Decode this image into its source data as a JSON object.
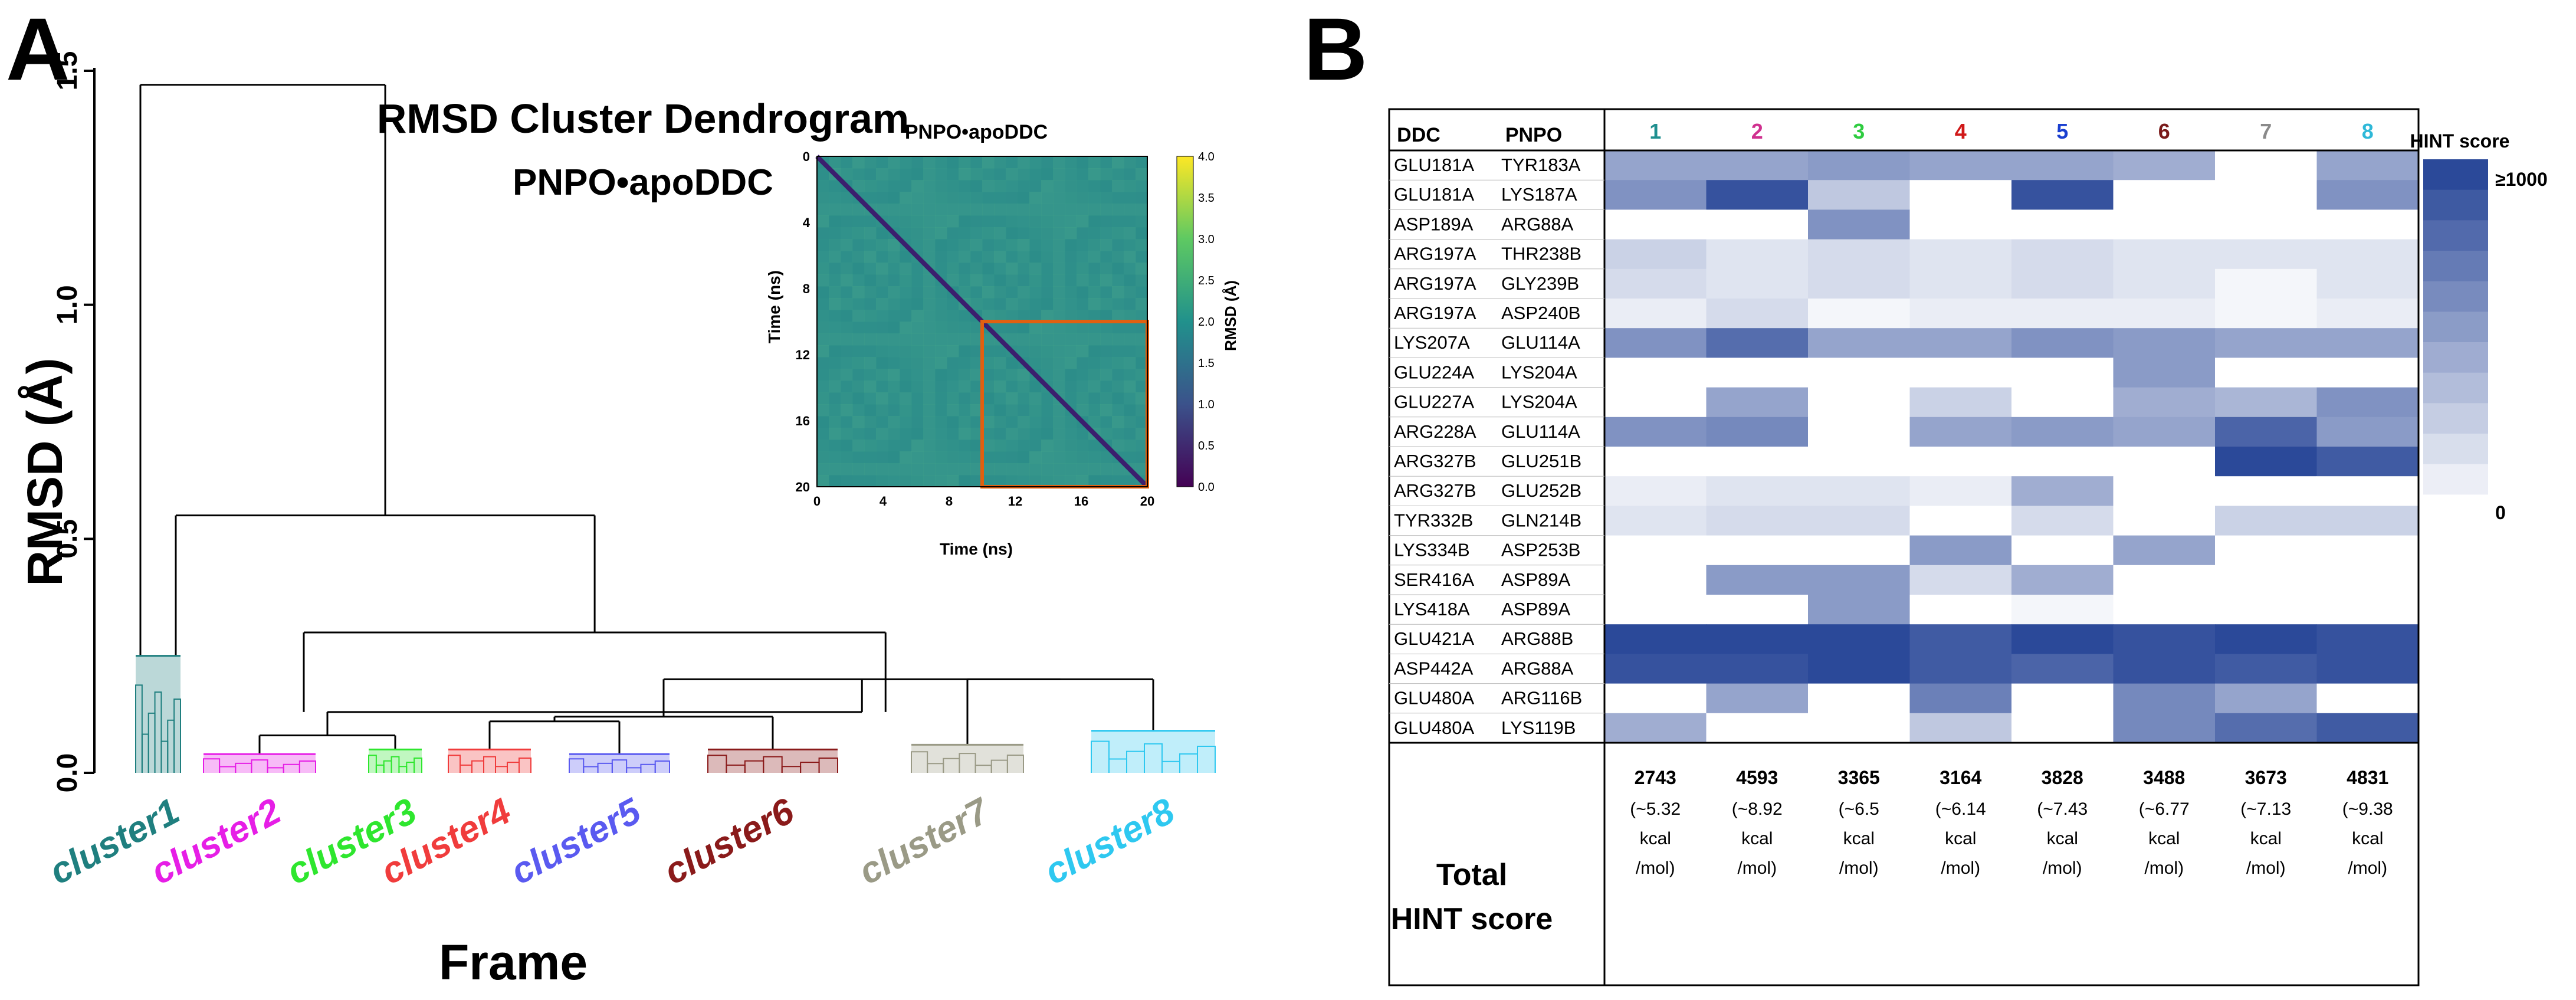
{
  "panel_a": {
    "letter": "A",
    "title": "RMSD Cluster Dendrogram",
    "subtitle": "PNPO•apoDDC",
    "ylabel": "RMSD (Å)",
    "xlabel": "Frame",
    "yticks": [
      "0.0",
      "0.5",
      "1.0",
      "1.5"
    ],
    "clusters": [
      {
        "label": "cluster1",
        "color": "#1f7f7f"
      },
      {
        "label": "cluster2",
        "color": "#e61ee6"
      },
      {
        "label": "cluster3",
        "color": "#2ee62e"
      },
      {
        "label": "cluster4",
        "color": "#f03c3c"
      },
      {
        "label": "cluster5",
        "color": "#5a5af0"
      },
      {
        "label": "cluster6",
        "color": "#8a1a1a"
      },
      {
        "label": "cluster7",
        "color": "#9a9a86"
      },
      {
        "label": "cluster8",
        "color": "#2ec8f0"
      }
    ],
    "inset": {
      "title": "PNPO•apoDDC",
      "xlabel": "Time (ns)",
      "ylabel": "Time (ns)",
      "ticks": [
        "0",
        "4",
        "8",
        "12",
        "16",
        "20"
      ],
      "colorbar_label": "RMSD (Å)",
      "colorbar_ticks": [
        "0.0",
        "0.5",
        "1.0",
        "1.5",
        "2.0",
        "2.5",
        "3.0",
        "3.5",
        "4.0"
      ]
    }
  },
  "panel_b": {
    "letter": "B",
    "header_ddc": "DDC",
    "header_pnpo": "PNPO",
    "legend_title": "HINT score",
    "legend_max": "≥1000",
    "legend_min": "0",
    "total_label_line1": "Total",
    "total_label_line2": "HINT score",
    "kcal_label": "kcal",
    "mol_label": "/mol)"
  },
  "chart_data": [
    {
      "type": "dendrogram",
      "title": "RMSD Cluster Dendrogram",
      "subtitle": "PNPO•apoDDC",
      "xlabel": "Frame",
      "ylabel": "RMSD (Å)",
      "ylim": [
        0,
        1.5
      ],
      "leaves": [
        "cluster1",
        "cluster2",
        "cluster3",
        "cluster4",
        "cluster5",
        "cluster6",
        "cluster7",
        "cluster8"
      ],
      "merges": [
        {
          "children": [
            "cluster2",
            "cluster3"
          ],
          "height": 0.08
        },
        {
          "children": [
            "cluster4",
            "cluster5"
          ],
          "height": 0.11
        },
        {
          "children": [
            "cluster4+5",
            "cluster6"
          ],
          "height": 0.12
        },
        {
          "children": [
            "cluster7",
            "cluster8"
          ],
          "height": 0.2
        },
        {
          "children": [
            "cluster4+5+6",
            "cluster7+8"
          ],
          "height": 0.2
        },
        {
          "children": [
            "cluster2+3",
            "cluster4-8"
          ],
          "height": 0.13
        },
        {
          "children": [
            "cluster2-3",
            "cluster4-8"
          ],
          "height": 0.3
        },
        {
          "children": [
            "cluster1",
            "cluster2-8"
          ],
          "height": 0.55
        },
        {
          "children": [
            "root-left",
            "root-right"
          ],
          "height": 1.47
        }
      ],
      "cluster_internal_height": [
        0.25,
        0.04,
        0.05,
        0.05,
        0.04,
        0.05,
        0.06,
        0.09
      ]
    },
    {
      "type": "heatmap",
      "title": "PNPO•apoDDC",
      "xlabel": "Time (ns)",
      "ylabel": "Time (ns)",
      "xlim": [
        0,
        20
      ],
      "ylim": [
        0,
        20
      ],
      "colorbar": {
        "label": "RMSD (Å)",
        "range": [
          0,
          4.0
        ]
      },
      "highlight_box_ns": {
        "x": [
          10,
          20
        ],
        "y": [
          10,
          20
        ]
      },
      "typical_offdiagonal_rmsd": 1.9,
      "diagonal_rmsd": 0.0
    },
    {
      "type": "table",
      "title": "HINT score",
      "columns": [
        "1",
        "2",
        "3",
        "4",
        "5",
        "6",
        "7",
        "8"
      ],
      "column_colors": [
        "#1f8f8f",
        "#d0308f",
        "#2ecc40",
        "#d01818",
        "#1a3fd0",
        "#7a1a1a",
        "#8a8a8a",
        "#2eb8d8"
      ],
      "scale_range": [
        0,
        1000
      ],
      "rows": [
        {
          "ddc": "GLU181A",
          "pnpo": "TYR183A",
          "values": [
            500,
            500,
            550,
            500,
            500,
            450,
            0,
            500
          ]
        },
        {
          "ddc": "GLU181A",
          "pnpo": "LYS187A",
          "values": [
            600,
            950,
            300,
            0,
            950,
            0,
            0,
            600
          ]
        },
        {
          "ddc": "ASP189A",
          "pnpo": "ARG88A",
          "values": [
            0,
            0,
            600,
            0,
            0,
            0,
            0,
            0
          ]
        },
        {
          "ddc": "ARG197A",
          "pnpo": "THR238B",
          "values": [
            250,
            150,
            200,
            150,
            200,
            150,
            150,
            150
          ]
        },
        {
          "ddc": "ARG197A",
          "pnpo": "GLY239B",
          "values": [
            200,
            150,
            200,
            150,
            200,
            150,
            50,
            150
          ]
        },
        {
          "ddc": "ARG197A",
          "pnpo": "ASP240B",
          "values": [
            100,
            200,
            50,
            100,
            100,
            100,
            50,
            100
          ]
        },
        {
          "ddc": "LYS207A",
          "pnpo": "GLU114A",
          "values": [
            600,
            800,
            500,
            500,
            600,
            550,
            500,
            500
          ]
        },
        {
          "ddc": "GLU224A",
          "pnpo": "LYS204A",
          "values": [
            0,
            0,
            0,
            0,
            0,
            550,
            0,
            0
          ]
        },
        {
          "ddc": "GLU227A",
          "pnpo": "LYS204A",
          "values": [
            0,
            500,
            0,
            250,
            0,
            450,
            400,
            600
          ]
        },
        {
          "ddc": "ARG228A",
          "pnpo": "GLU114A",
          "values": [
            600,
            650,
            0,
            500,
            550,
            500,
            850,
            550
          ]
        },
        {
          "ddc": "ARG327B",
          "pnpo": "GLU251B",
          "values": [
            0,
            0,
            0,
            0,
            0,
            0,
            1000,
            900
          ]
        },
        {
          "ddc": "ARG327B",
          "pnpo": "GLU252B",
          "values": [
            100,
            150,
            150,
            100,
            450,
            0,
            0,
            0
          ]
        },
        {
          "ddc": "TYR332B",
          "pnpo": "GLN214B",
          "values": [
            150,
            200,
            200,
            0,
            200,
            0,
            250,
            250
          ]
        },
        {
          "ddc": "LYS334B",
          "pnpo": "ASP253B",
          "values": [
            0,
            0,
            0,
            550,
            0,
            500,
            0,
            0
          ]
        },
        {
          "ddc": "SER416A",
          "pnpo": "ASP89A",
          "values": [
            0,
            550,
            550,
            200,
            450,
            0,
            0,
            0
          ]
        },
        {
          "ddc": "LYS418A",
          "pnpo": "ASP89A",
          "values": [
            0,
            0,
            550,
            0,
            50,
            0,
            0,
            0
          ]
        },
        {
          "ddc": "GLU421A",
          "pnpo": "ARG88B",
          "values": [
            1000,
            1000,
            1000,
            900,
            1000,
            950,
            1000,
            950
          ]
        },
        {
          "ddc": "ASP442A",
          "pnpo": "ARG88A",
          "values": [
            950,
            950,
            1000,
            900,
            850,
            950,
            900,
            950
          ]
        },
        {
          "ddc": "GLU480A",
          "pnpo": "ARG116B",
          "values": [
            0,
            500,
            0,
            700,
            0,
            650,
            500,
            0
          ]
        },
        {
          "ddc": "GLU480A",
          "pnpo": "LYS119B",
          "values": [
            450,
            0,
            0,
            300,
            0,
            650,
            800,
            900
          ]
        }
      ],
      "totals": [
        "2743",
        "4593",
        "3365",
        "3164",
        "3828",
        "3488",
        "3673",
        "4831"
      ],
      "totals_kcal": [
        "(~5.32",
        "(~8.92",
        "(~6.5",
        "(~6.14",
        "(~7.43",
        "(~6.77",
        "(~7.13",
        "(~9.38"
      ]
    }
  ]
}
